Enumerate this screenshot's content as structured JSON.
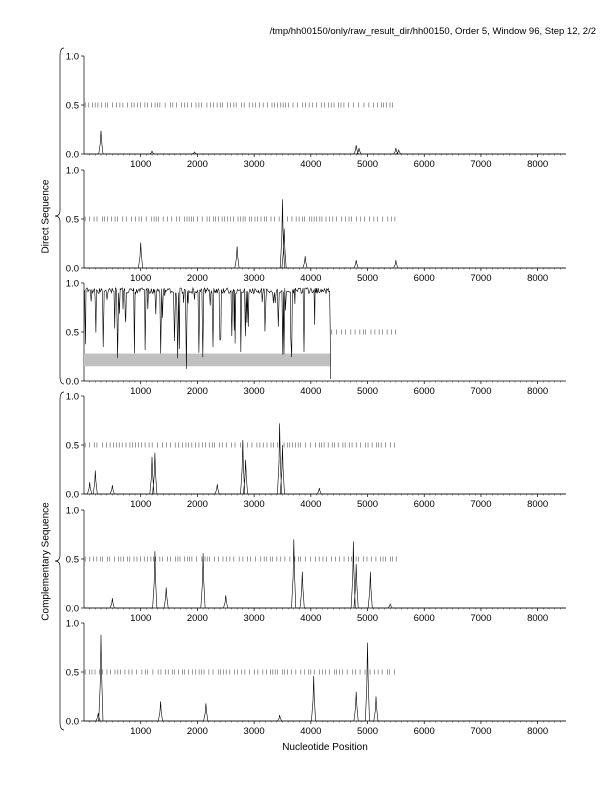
{
  "header": {
    "title": "/tmp/hh00150/only/raw_result_dir/hh00150, Order 5, Window 96, Step 12, 2/2"
  },
  "chart_data": {
    "type": "line",
    "xlabel": "Nucleotide Position",
    "group_labels": [
      "Direct Sequence",
      "Complementary Sequence"
    ],
    "xlim": [
      0,
      8500
    ],
    "ylim": [
      0,
      1.0
    ],
    "x_ticks": [
      1000,
      2000,
      3000,
      4000,
      5000,
      6000,
      7000,
      8000
    ],
    "y_ticks": [
      "0.0",
      "0.5",
      "1.0"
    ],
    "panels": [
      {
        "group": "Direct Sequence",
        "baseline_end": 8500,
        "ticks_range": [
          0,
          5450
        ],
        "peaks": [
          [
            300,
            0.24
          ],
          [
            1200,
            0.03
          ],
          [
            1950,
            0.02
          ],
          [
            4800,
            0.09
          ],
          [
            4850,
            0.06
          ],
          [
            5500,
            0.06
          ],
          [
            5550,
            0.04
          ]
        ]
      },
      {
        "group": "Direct Sequence",
        "baseline_end": 8500,
        "ticks_range": [
          0,
          5550
        ],
        "peaks": [
          [
            1000,
            0.26
          ],
          [
            2700,
            0.22
          ],
          [
            3500,
            0.7
          ],
          [
            3530,
            0.4
          ],
          [
            3900,
            0.12
          ],
          [
            4800,
            0.08
          ],
          [
            5500,
            0.08
          ]
        ]
      },
      {
        "group": "Direct Sequence",
        "baseline_end": 4350,
        "ticks_range": [
          4350,
          5500
        ],
        "band": [
          0,
          4350,
          0.15,
          0.28
        ],
        "dense": true,
        "trough_range": [
          0,
          4350
        ]
      },
      {
        "group": "Complementary Sequence",
        "baseline_end": 8500,
        "ticks_range": [
          0,
          5500
        ],
        "peaks": [
          [
            100,
            0.12
          ],
          [
            200,
            0.24
          ],
          [
            500,
            0.09
          ],
          [
            1200,
            0.38
          ],
          [
            1250,
            0.42
          ],
          [
            2350,
            0.1
          ],
          [
            2800,
            0.55
          ],
          [
            2850,
            0.35
          ],
          [
            3450,
            0.72
          ],
          [
            3500,
            0.5
          ],
          [
            4150,
            0.06
          ]
        ]
      },
      {
        "group": "Complementary Sequence",
        "baseline_end": 8500,
        "ticks_range": [
          0,
          5550
        ],
        "peaks": [
          [
            500,
            0.1
          ],
          [
            1250,
            0.58
          ],
          [
            1450,
            0.21
          ],
          [
            2100,
            0.56
          ],
          [
            2500,
            0.13
          ],
          [
            3700,
            0.7
          ],
          [
            3850,
            0.37
          ],
          [
            4750,
            0.68
          ],
          [
            4800,
            0.45
          ],
          [
            5050,
            0.37
          ],
          [
            5400,
            0.04
          ]
        ]
      },
      {
        "group": "Complementary Sequence",
        "baseline_end": 8500,
        "ticks_range": [
          0,
          5550
        ],
        "peaks": [
          [
            250,
            0.08
          ],
          [
            300,
            0.88
          ],
          [
            1350,
            0.2
          ],
          [
            2150,
            0.18
          ],
          [
            3450,
            0.06
          ],
          [
            4050,
            0.46
          ],
          [
            4800,
            0.3
          ],
          [
            5000,
            0.8
          ],
          [
            5150,
            0.25
          ]
        ]
      }
    ]
  }
}
